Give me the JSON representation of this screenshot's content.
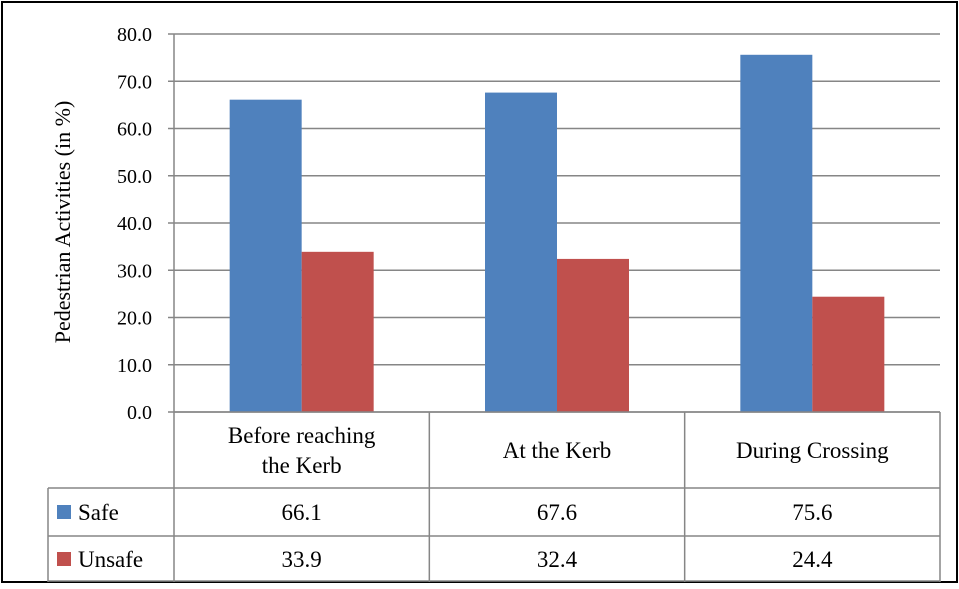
{
  "chart_data": {
    "type": "bar",
    "categories": [
      "Before reaching the Kerb",
      "At the Kerb",
      "During Crossing"
    ],
    "category_lines": [
      [
        "Before reaching",
        "the Kerb"
      ],
      [
        "At the Kerb"
      ],
      [
        "During Crossing"
      ]
    ],
    "series": [
      {
        "name": "Safe",
        "values": [
          66.1,
          67.6,
          75.6
        ],
        "labels": [
          "66.1",
          "67.6",
          "75.6"
        ],
        "color": "#4f81bd"
      },
      {
        "name": "Unsafe",
        "values": [
          33.9,
          32.4,
          24.4
        ],
        "labels": [
          "33.9",
          "32.4",
          "24.4"
        ],
        "color": "#c0504d"
      }
    ],
    "ylabel": "Pedestrian Activities (in %)",
    "ylim": [
      0,
      80
    ],
    "yticks": [
      "0.0",
      "10.0",
      "20.0",
      "30.0",
      "40.0",
      "50.0",
      "60.0",
      "70.0",
      "80.0"
    ],
    "grid": true,
    "legend": "data-table"
  }
}
